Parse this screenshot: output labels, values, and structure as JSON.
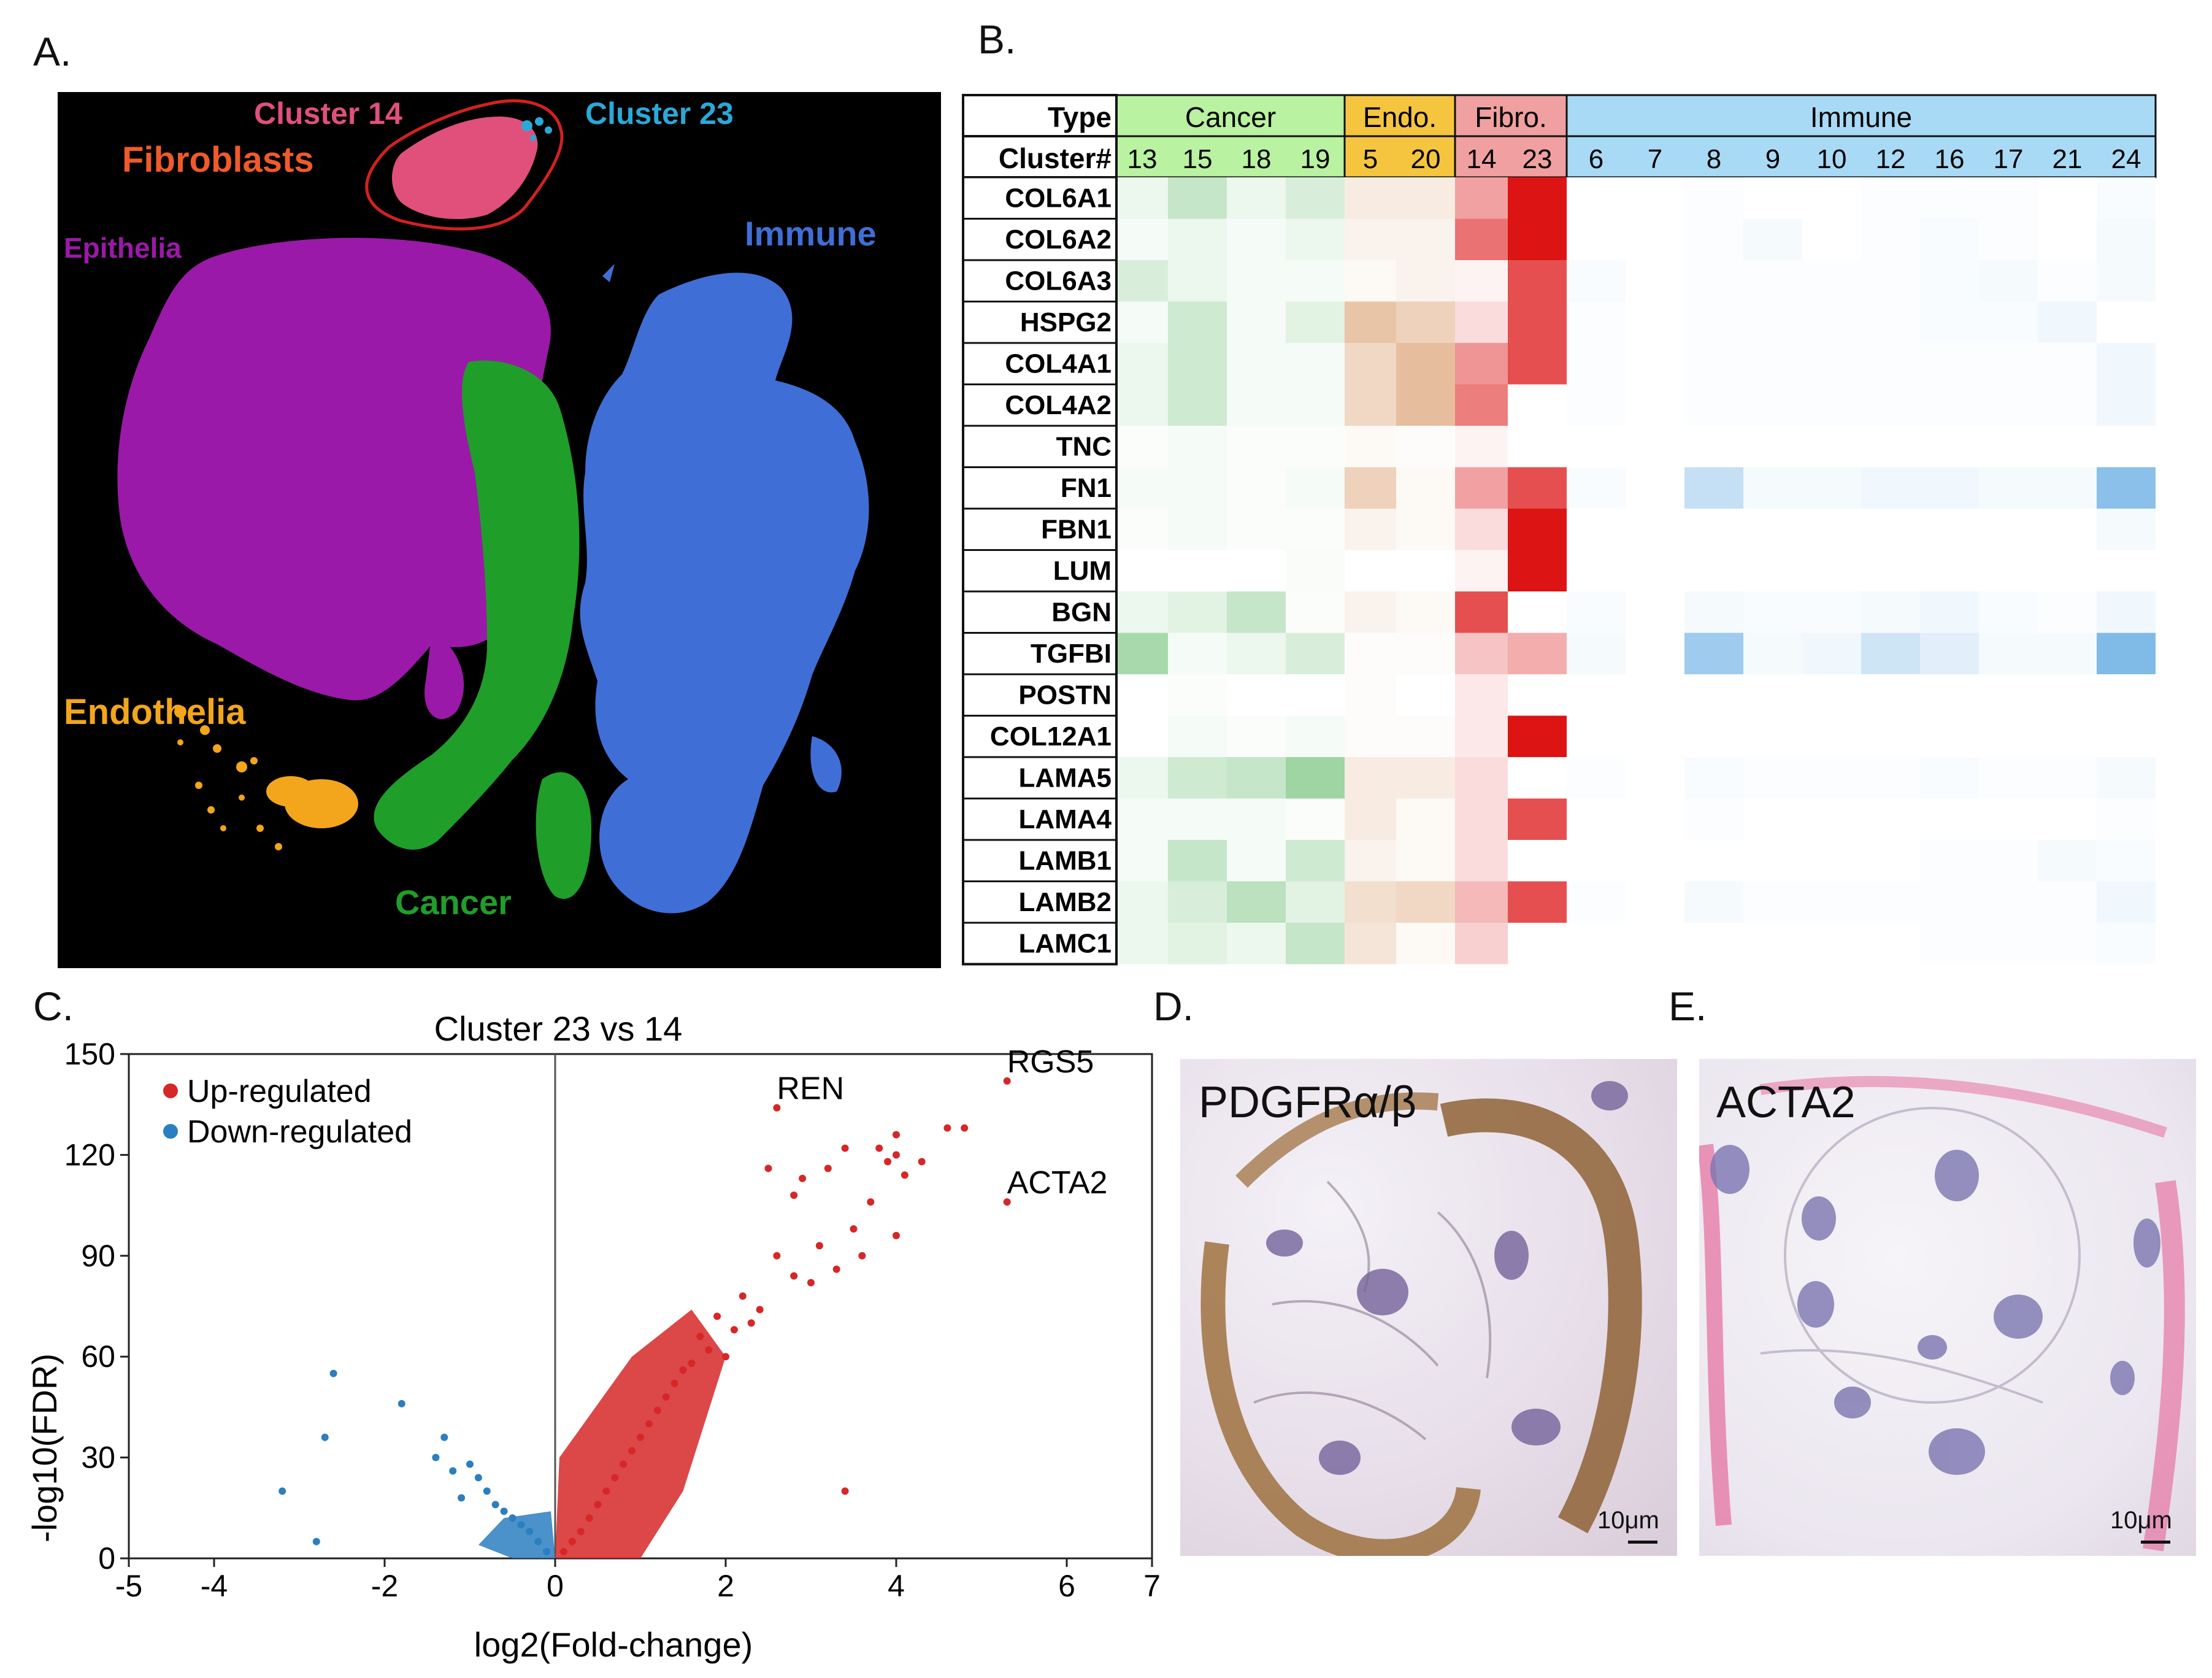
{
  "panel_letters": {
    "a": "A.",
    "b": "B.",
    "c": "C.",
    "d": "D.",
    "e": "E."
  },
  "panelA": {
    "labels": {
      "cluster14": "Cluster 14",
      "cluster23": "Cluster 23",
      "fibroblasts": "Fibroblasts",
      "epithelia": "Epithelia",
      "immune": "Immune",
      "endothelia": "Endothelia",
      "cancer": "Cancer"
    },
    "colors": {
      "background": "#000000",
      "epithelia": "#9b19a8",
      "immune": "#3f6fd6",
      "cancer": "#1f9e2a",
      "endothelia": "#f3a51c",
      "fibroblasts": "#e0507a",
      "cluster23": "#2aa9d8",
      "fibro_label": "#ef5a2a",
      "outline": "#d42020"
    }
  },
  "panelB": {
    "type_header": "Type",
    "cluster_header": "Cluster#",
    "groups": [
      {
        "name": "Cancer",
        "color": "#b9f2a0",
        "clusters": [
          "13",
          "15",
          "18",
          "19"
        ]
      },
      {
        "name": "Endo.",
        "color": "#f5c540",
        "clusters": [
          "5",
          "20"
        ]
      },
      {
        "name": "Fibro.",
        "color": "#f0a0a0",
        "clusters": [
          "14",
          "23"
        ]
      },
      {
        "name": "Immune",
        "color": "#a8daf5",
        "clusters": [
          "6",
          "7",
          "8",
          "9",
          "10",
          "12",
          "16",
          "17",
          "21",
          "24"
        ]
      }
    ],
    "genes": [
      "COL6A1",
      "COL6A2",
      "COL6A3",
      "HSPG2",
      "COL4A1",
      "COL4A2",
      "TNC",
      "FN1",
      "FBN1",
      "LUM",
      "BGN",
      "TGFBI",
      "POSTN",
      "COL12A1",
      "LAMA5",
      "LAMA4",
      "LAMB1",
      "LAMB2",
      "LAMC1"
    ],
    "values": [
      [
        0.1,
        0.3,
        0.1,
        0.2,
        0.15,
        0.15,
        0.4,
        1.0,
        0,
        0,
        0.02,
        0,
        0,
        0.02,
        0.02,
        0.02,
        0,
        0.03
      ],
      [
        0.05,
        0.1,
        0.05,
        0.1,
        0.1,
        0.1,
        0.6,
        1.0,
        0,
        0,
        0.02,
        0.05,
        0,
        0.02,
        0.03,
        0.02,
        0,
        0.05
      ],
      [
        0.2,
        0.1,
        0.05,
        0.05,
        0.05,
        0.1,
        0.05,
        0.75,
        0.03,
        0,
        0.02,
        0.02,
        0.02,
        0.02,
        0.03,
        0.05,
        0.02,
        0.05
      ],
      [
        0.05,
        0.25,
        0.05,
        0.15,
        0.45,
        0.35,
        0.15,
        0.75,
        0.02,
        0,
        0.02,
        0.02,
        0.02,
        0.02,
        0.03,
        0.03,
        0.07,
        0
      ],
      [
        0.1,
        0.25,
        0.05,
        0.05,
        0.3,
        0.5,
        0.45,
        0.75,
        0.02,
        0,
        0.02,
        0.02,
        0.02,
        0.02,
        0.02,
        0.02,
        0.02,
        0.07
      ],
      [
        0.1,
        0.25,
        0.05,
        0.05,
        0.3,
        0.5,
        0.55,
        0,
        0.02,
        0,
        0.02,
        0.02,
        0.02,
        0.02,
        0.02,
        0.02,
        0.02,
        0.07
      ],
      [
        0.02,
        0.05,
        0.02,
        0.02,
        0.05,
        0.02,
        0.05,
        0,
        0,
        0,
        0,
        0,
        0,
        0,
        0,
        0,
        0,
        0
      ],
      [
        0.05,
        0.05,
        0.02,
        0.05,
        0.35,
        0.05,
        0.4,
        0.75,
        0.03,
        0,
        0.3,
        0.05,
        0.05,
        0.07,
        0.07,
        0.05,
        0.05,
        0.6
      ],
      [
        0.02,
        0.05,
        0.02,
        0.02,
        0.1,
        0.05,
        0.15,
        1.0,
        0,
        0,
        0,
        0,
        0,
        0,
        0,
        0,
        0,
        0.05
      ],
      [
        0,
        0,
        0,
        0.03,
        0,
        0,
        0.05,
        1.0,
        0,
        0,
        0,
        0,
        0,
        0,
        0,
        0,
        0,
        0
      ],
      [
        0.1,
        0.15,
        0.3,
        0.02,
        0.1,
        0.05,
        0.75,
        0,
        0.03,
        0,
        0.05,
        0.03,
        0.03,
        0.05,
        0.07,
        0.03,
        0.02,
        0.07
      ],
      [
        0.45,
        0.05,
        0.1,
        0.2,
        0.02,
        0.02,
        0.25,
        0.35,
        0.05,
        0,
        0.5,
        0.05,
        0.07,
        0.25,
        0.15,
        0.05,
        0.05,
        0.65
      ],
      [
        0,
        0.02,
        0,
        0,
        0.02,
        0,
        0.1,
        0,
        0,
        0,
        0,
        0,
        0,
        0,
        0,
        0,
        0,
        0
      ],
      [
        0,
        0.05,
        0.02,
        0.05,
        0.02,
        0.02,
        0.1,
        1.0,
        0,
        0,
        0,
        0,
        0,
        0,
        0,
        0,
        0,
        0
      ],
      [
        0.1,
        0.25,
        0.3,
        0.5,
        0.15,
        0.15,
        0.15,
        0,
        0.02,
        0,
        0.03,
        0.02,
        0.02,
        0.02,
        0.03,
        0.02,
        0.02,
        0.05
      ],
      [
        0.05,
        0.05,
        0.05,
        0.02,
        0.15,
        0.05,
        0.15,
        0.75,
        0,
        0,
        0.02,
        0,
        0,
        0,
        0,
        0,
        0,
        0.02
      ],
      [
        0.05,
        0.3,
        0.05,
        0.25,
        0.1,
        0.05,
        0.15,
        0,
        0,
        0,
        0,
        0,
        0,
        0,
        0.02,
        0.02,
        0.05,
        0.03
      ],
      [
        0.1,
        0.2,
        0.35,
        0.15,
        0.25,
        0.3,
        0.3,
        0.75,
        0.02,
        0,
        0.05,
        0.02,
        0.02,
        0.02,
        0.02,
        0.02,
        0.02,
        0.07
      ],
      [
        0.1,
        0.15,
        0.1,
        0.3,
        0.2,
        0.05,
        0.2,
        0,
        0,
        0,
        0,
        0,
        0,
        0,
        0.02,
        0.02,
        0.02,
        0.03
      ]
    ]
  },
  "chart_data": {
    "type": "scatter",
    "title": "Cluster 23 vs 14",
    "xlabel": "log2(Fold-change)",
    "ylabel": "-log10(FDR)",
    "xlim": [
      -5,
      7
    ],
    "ylim": [
      0,
      150
    ],
    "xticks": [
      "-5",
      "-4",
      "-2",
      "0",
      "2",
      "4",
      "6",
      "7"
    ],
    "yticks": [
      "0",
      "30",
      "60",
      "90",
      "120",
      "150"
    ],
    "legend": {
      "position": "top-left",
      "entries": [
        {
          "name": "Up-regulated",
          "color": "#d62728"
        },
        {
          "name": "Down-regulated",
          "color": "#2a7fc0"
        }
      ]
    },
    "annotations": [
      {
        "text": "REN",
        "x": 2.6,
        "y": 134
      },
      {
        "text": "RGS5",
        "x": 5.3,
        "y": 142
      },
      {
        "text": "ACTA2",
        "x": 5.3,
        "y": 106
      }
    ],
    "series": [
      {
        "name": "Up-regulated",
        "color": "#d62728",
        "points": [
          [
            2.6,
            134
          ],
          [
            5.3,
            142
          ],
          [
            5.3,
            106
          ],
          [
            4.6,
            128
          ],
          [
            4.8,
            128
          ],
          [
            4.3,
            118
          ],
          [
            4.0,
            126
          ],
          [
            3.9,
            118
          ],
          [
            3.8,
            122
          ],
          [
            4.1,
            114
          ],
          [
            4.0,
            120
          ],
          [
            3.4,
            122
          ],
          [
            3.2,
            116
          ],
          [
            2.5,
            116
          ],
          [
            2.9,
            113
          ],
          [
            2.8,
            108
          ],
          [
            3.7,
            106
          ],
          [
            3.5,
            98
          ],
          [
            4.0,
            96
          ],
          [
            3.1,
            93
          ],
          [
            3.6,
            90
          ],
          [
            2.6,
            90
          ],
          [
            3.3,
            86
          ],
          [
            2.8,
            84
          ],
          [
            3.0,
            82
          ],
          [
            2.2,
            78
          ],
          [
            3.4,
            20
          ],
          [
            2.4,
            74
          ],
          [
            1.9,
            72
          ],
          [
            2.1,
            68
          ],
          [
            2.3,
            70
          ],
          [
            1.7,
            66
          ],
          [
            1.8,
            62
          ],
          [
            2.0,
            60
          ],
          [
            1.6,
            58
          ],
          [
            1.5,
            56
          ],
          [
            1.4,
            52
          ],
          [
            1.3,
            48
          ],
          [
            1.2,
            44
          ],
          [
            1.1,
            40
          ],
          [
            1.0,
            36
          ],
          [
            0.9,
            32
          ],
          [
            0.8,
            28
          ],
          [
            0.7,
            24
          ],
          [
            0.6,
            20
          ],
          [
            0.5,
            16
          ],
          [
            0.4,
            12
          ],
          [
            0.3,
            8
          ],
          [
            0.2,
            5
          ],
          [
            0.1,
            2
          ]
        ]
      },
      {
        "name": "Down-regulated",
        "color": "#2a7fc0",
        "points": [
          [
            -2.6,
            55
          ],
          [
            -1.8,
            46
          ],
          [
            -2.7,
            36
          ],
          [
            -1.3,
            36
          ],
          [
            -1.4,
            30
          ],
          [
            -3.2,
            20
          ],
          [
            -2.8,
            5
          ],
          [
            -1.0,
            28
          ],
          [
            -0.9,
            24
          ],
          [
            -1.2,
            26
          ],
          [
            -0.8,
            20
          ],
          [
            -1.1,
            18
          ],
          [
            -0.7,
            16
          ],
          [
            -0.6,
            14
          ],
          [
            -0.5,
            12
          ],
          [
            -0.4,
            10
          ],
          [
            -0.3,
            8
          ],
          [
            -0.2,
            5
          ],
          [
            -0.1,
            2
          ]
        ]
      }
    ]
  },
  "panelD": {
    "label": "PDGFRα/β",
    "scale": "10μm"
  },
  "panelE": {
    "label": "ACTA2",
    "scale": "10μm"
  }
}
